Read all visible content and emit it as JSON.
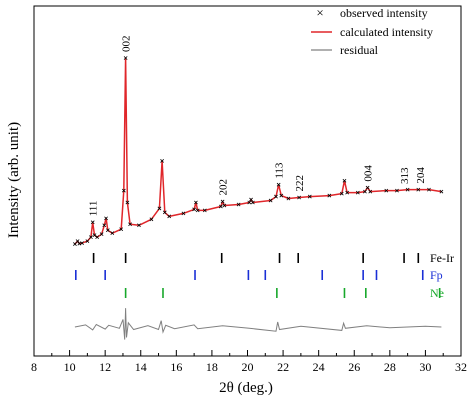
{
  "chart_data": {
    "type": "line",
    "xlabel": "2θ (deg.)",
    "ylabel": "Intensity (arb. unit)",
    "xlim": [
      8,
      32
    ],
    "x_ticks": [
      8,
      10,
      12,
      14,
      16,
      18,
      20,
      22,
      24,
      26,
      28,
      30,
      32
    ],
    "grid": false,
    "legend_position": "top-right",
    "legend": [
      {
        "label": "observed intensity",
        "marker": "×",
        "color": "#000000"
      },
      {
        "label": "calculated intensity",
        "color": "#e0262a"
      },
      {
        "label": "residual",
        "color": "#808080"
      }
    ],
    "series": [
      {
        "name": "calculated intensity",
        "color": "#e0262a",
        "x": [
          10.3,
          10.45,
          10.55,
          10.7,
          11.0,
          11.2,
          11.3,
          11.4,
          11.55,
          11.8,
          11.95,
          12.05,
          12.15,
          12.4,
          12.9,
          13.05,
          13.15,
          13.25,
          13.4,
          13.9,
          14.6,
          15.05,
          15.2,
          15.35,
          15.6,
          16.4,
          17.0,
          17.1,
          17.2,
          17.6,
          18.5,
          18.6,
          18.7,
          19.5,
          20.1,
          20.2,
          20.3,
          21.3,
          21.6,
          21.75,
          21.9,
          22.3,
          22.9,
          23.5,
          24.6,
          25.3,
          25.45,
          25.6,
          26.2,
          26.6,
          26.75,
          26.9,
          27.8,
          28.4,
          29.0,
          29.6,
          30.2,
          30.9
        ],
        "y": [
          3.0,
          4.5,
          3.2,
          3.5,
          4.5,
          6.5,
          14.0,
          7.5,
          6.5,
          8.0,
          12.5,
          16.0,
          10.0,
          8.5,
          10.5,
          30.0,
          97.0,
          24.0,
          13.0,
          12.5,
          15.5,
          21.0,
          45.0,
          19.0,
          17.0,
          18.5,
          20.5,
          24.0,
          20.0,
          20.0,
          22.0,
          24.5,
          22.5,
          23.0,
          24.0,
          25.5,
          24.0,
          25.0,
          27.0,
          33.0,
          27.5,
          26.0,
          26.5,
          27.0,
          27.5,
          28.5,
          35.0,
          29.0,
          29.0,
          29.5,
          31.5,
          29.5,
          30.0,
          30.0,
          30.5,
          30.5,
          30.5,
          29.5
        ]
      },
      {
        "name": "residual",
        "color": "#808080",
        "x": [
          10.3,
          10.9,
          11.3,
          11.5,
          12.0,
          12.2,
          12.8,
          13.0,
          13.1,
          13.15,
          13.2,
          13.3,
          13.6,
          14.4,
          15.0,
          15.15,
          15.25,
          15.4,
          15.9,
          17.0,
          17.2,
          18.6,
          20.1,
          21.6,
          21.7,
          21.8,
          23.0,
          25.3,
          25.4,
          25.5,
          26.7,
          28.0,
          30.0,
          30.9
        ],
        "y": [
          0.0,
          0.5,
          -0.7,
          0.6,
          -0.5,
          0.4,
          -0.3,
          1.8,
          -3.0,
          4.5,
          -2.5,
          1.0,
          -0.6,
          0.3,
          -0.6,
          1.5,
          -1.2,
          0.4,
          -0.4,
          0.5,
          -0.4,
          0.3,
          -0.3,
          -1.0,
          1.2,
          -0.6,
          0.2,
          -0.8,
          0.9,
          -0.3,
          0.3,
          -0.2,
          0.2,
          0.0
        ]
      }
    ],
    "peak_labels": [
      {
        "text": "111",
        "x": 11.3
      },
      {
        "text": "002",
        "x": 13.15
      },
      {
        "text": "202",
        "x": 18.6
      },
      {
        "text": "113",
        "x": 21.75
      },
      {
        "text": "222",
        "x": 22.9
      },
      {
        "text": "004",
        "x": 26.75
      },
      {
        "text": "313",
        "x": 28.8
      },
      {
        "text": "204",
        "x": 29.7
      }
    ],
    "phases": [
      {
        "name": "Fe-Ir",
        "color": "#000000",
        "positions": [
          11.35,
          13.15,
          18.55,
          21.8,
          22.85,
          26.5,
          28.8,
          29.6
        ]
      },
      {
        "name": "Fp",
        "color": "#1a2fd6",
        "positions": [
          10.35,
          12.0,
          17.05,
          20.05,
          21.0,
          24.2,
          26.5,
          27.25,
          29.85
        ]
      },
      {
        "name": "Ne",
        "color": "#17a82a",
        "positions": [
          13.15,
          15.25,
          21.65,
          25.45,
          26.65,
          30.8
        ]
      }
    ]
  }
}
